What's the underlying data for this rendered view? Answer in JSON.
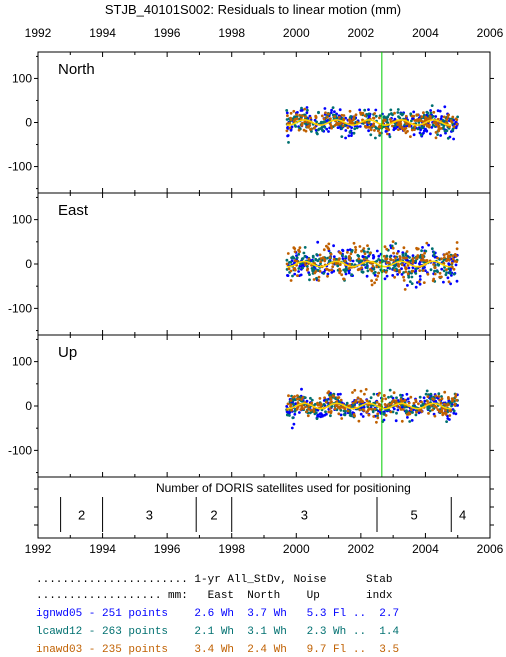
{
  "title": "STJB_40101S002: Residuals to linear motion (mm)",
  "chart_data": [
    {
      "type": "scatter",
      "panel": "North",
      "xlabel": "",
      "ylabel": "",
      "xlim": [
        1992,
        2006
      ],
      "ylim": [
        -160,
        160
      ],
      "xticks": [
        "1992",
        "1994",
        "1996",
        "1998",
        "2000",
        "2002",
        "2004",
        "2006"
      ],
      "yticks": [
        "100",
        "0",
        "-100"
      ],
      "marker_line_x": 2002.65,
      "series": [
        {
          "name": "ignwd05",
          "color": "#0000ff",
          "x_range": [
            1999.7,
            2005.0
          ],
          "sd": 14,
          "smooth_amp": 8
        },
        {
          "name": "lcawd12",
          "color": "#007070",
          "x_range": [
            1999.7,
            2005.0
          ],
          "sd": 12,
          "smooth_amp": 7
        },
        {
          "name": "inawd03",
          "color": "#c06000",
          "x_range": [
            1999.7,
            2005.0
          ],
          "sd": 11,
          "smooth_amp": 7
        }
      ]
    },
    {
      "type": "scatter",
      "panel": "East",
      "xlabel": "",
      "ylabel": "",
      "xlim": [
        1992,
        2006
      ],
      "ylim": [
        -160,
        160
      ],
      "yticks": [
        "100",
        "0",
        "-100"
      ],
      "marker_line_x": 2002.65,
      "series": [
        {
          "name": "ignwd05",
          "color": "#0000ff",
          "x_range": [
            1999.7,
            2005.0
          ],
          "sd": 18,
          "smooth_amp": 9
        },
        {
          "name": "lcawd12",
          "color": "#007070",
          "x_range": [
            1999.7,
            2005.0
          ],
          "sd": 16,
          "smooth_amp": 8
        },
        {
          "name": "inawd03",
          "color": "#c06000",
          "x_range": [
            1999.7,
            2005.0
          ],
          "sd": 19,
          "smooth_amp": 8
        }
      ]
    },
    {
      "type": "scatter",
      "panel": "Up",
      "xlabel": "",
      "ylabel": "",
      "xlim": [
        1992,
        2006
      ],
      "ylim": [
        -160,
        160
      ],
      "yticks": [
        "100",
        "0",
        "-100"
      ],
      "marker_line_x": 2002.65,
      "series": [
        {
          "name": "ignwd05",
          "color": "#0000ff",
          "x_range": [
            1999.7,
            2005.0
          ],
          "sd": 13,
          "smooth_amp": 9
        },
        {
          "name": "lcawd12",
          "color": "#007070",
          "x_range": [
            1999.7,
            2005.0
          ],
          "sd": 12,
          "smooth_amp": 8
        },
        {
          "name": "inawd03",
          "color": "#c06000",
          "x_range": [
            1999.7,
            2005.0
          ],
          "sd": 14,
          "smooth_amp": 8
        }
      ]
    },
    {
      "type": "bar",
      "panel": "satellites",
      "title": "Number of DORIS satellites used for positioning",
      "xlim": [
        1992,
        2006
      ],
      "segments": [
        {
          "start": 1992.7,
          "end": 1994.0,
          "label": "2"
        },
        {
          "start": 1994.0,
          "end": 1996.9,
          "label": "3"
        },
        {
          "start": 1996.9,
          "end": 1998.0,
          "label": "2"
        },
        {
          "start": 1998.0,
          "end": 2002.5,
          "label": "3"
        },
        {
          "start": 2002.5,
          "end": 2004.8,
          "label": "5"
        },
        {
          "start": 2004.8,
          "end": 2005.5,
          "label": "4"
        }
      ],
      "xticks": [
        "1992",
        "1994",
        "1996",
        "1998",
        "2000",
        "2002",
        "2004",
        "2006"
      ]
    }
  ],
  "legend": {
    "header1": "....................... 1-yr All_StDv, Noise      Stab",
    "header2": "................... mm:   East  North    Up       indx",
    "rows": [
      {
        "text": "ignwd05 - 251 points    2.6 Wh  3.7 Wh   5.3 Fl ..  2.7",
        "color": "#0000ff"
      },
      {
        "text": "lcawd12 - 263 points    2.1 Wh  3.1 Wh   2.3 Wh ..  1.4",
        "color": "#007070"
      },
      {
        "text": "inawd03 - 235 points    3.4 Wh  2.4 Wh   9.7 Fl ..  3.5",
        "color": "#c06000"
      }
    ]
  },
  "colors": {
    "marker_line": "#00cc00",
    "smooth_curve": "#ffd400",
    "axis": "#000000"
  }
}
